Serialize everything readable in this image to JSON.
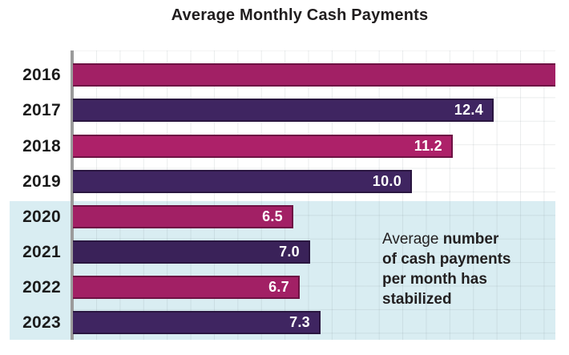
{
  "title": "Average Monthly Cash Payments",
  "colors": {
    "background": "#FFFFFF",
    "highlight_band_bg": "#D9EDF2",
    "axis_line": "#9B9B9B",
    "title_text": "#201D1E",
    "category_text": "#1B1B1B",
    "value_label_text": "#FFFFFF",
    "annotation_text": "#232021",
    "magenta_bar": "#A22065",
    "purple_bar": "#3F2561"
  },
  "chart_data": {
    "type": "bar",
    "orientation": "horizontal",
    "title": "Average Monthly Cash Payments",
    "categories": [
      "2016",
      "2017",
      "2018",
      "2019",
      "2020",
      "2021",
      "2022",
      "2023"
    ],
    "values": [
      null,
      12.4,
      11.2,
      10.0,
      6.5,
      7.0,
      6.7,
      7.3
    ],
    "value_labels": [
      "",
      "12.4",
      "11.2",
      "10.0",
      "6.5",
      "7.0",
      "6.7",
      "7.3"
    ],
    "ylabel": "",
    "xlabel": "",
    "x_axis": {
      "ticks_shown": false,
      "visible_range_units": [
        0,
        14.2
      ]
    },
    "grid": "decorative square grid over plot area",
    "legend": "none",
    "notes": "2016 bar is clipped at the right edge of the plot area and shows no value label; its visible length is about 14.2 units",
    "highlight_band": {
      "from_category": "2020",
      "to_category": "2023",
      "annotation": "Average number of cash payments per month has stabilized"
    },
    "bars": [
      {
        "category": "2016",
        "value": null,
        "label": "",
        "clipped": true,
        "color": "#A22065",
        "edge": "#6E1244"
      },
      {
        "category": "2017",
        "value": 12.4,
        "label": "12.4",
        "clipped": false,
        "color": "#3F2561",
        "edge": "#2A1640"
      },
      {
        "category": "2018",
        "value": 11.2,
        "label": "11.2",
        "clipped": false,
        "color": "#AD2169",
        "edge": "#6E1244"
      },
      {
        "category": "2019",
        "value": 10.0,
        "label": "10.0",
        "clipped": false,
        "color": "#3F2561",
        "edge": "#2A1640"
      },
      {
        "category": "2020",
        "value": 6.5,
        "label": "6.5",
        "clipped": false,
        "color": "#A22065",
        "edge": "#6E1244"
      },
      {
        "category": "2021",
        "value": 7.0,
        "label": "7.0",
        "clipped": false,
        "color": "#3A2259",
        "edge": "#2A1640"
      },
      {
        "category": "2022",
        "value": 6.7,
        "label": "6.7",
        "clipped": false,
        "color": "#A22065",
        "edge": "#6E1244"
      },
      {
        "category": "2023",
        "value": 7.3,
        "label": "7.3",
        "clipped": false,
        "color": "#3F2561",
        "edge": "#2A1640"
      }
    ]
  },
  "annotation": {
    "lines": [
      {
        "regular": "Average ",
        "bold": "number"
      },
      {
        "regular": "",
        "bold": "of cash payments"
      },
      {
        "regular": "",
        "bold": "per month has"
      },
      {
        "regular": "",
        "bold": "stabilized"
      }
    ]
  }
}
